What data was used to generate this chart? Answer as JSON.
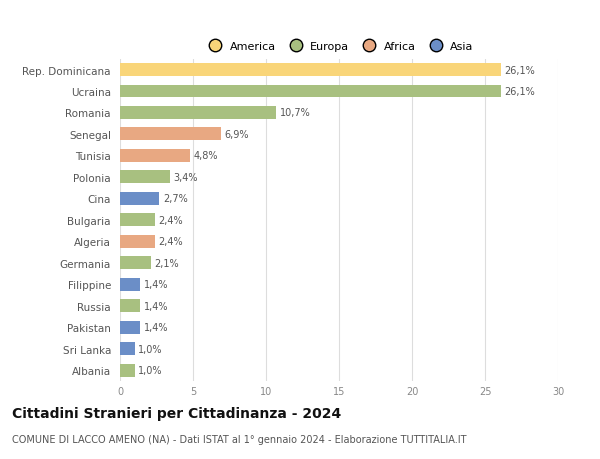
{
  "categories": [
    "Rep. Dominicana",
    "Ucraina",
    "Romania",
    "Senegal",
    "Tunisia",
    "Polonia",
    "Cina",
    "Bulgaria",
    "Algeria",
    "Germania",
    "Filippine",
    "Russia",
    "Pakistan",
    "Sri Lanka",
    "Albania"
  ],
  "values": [
    26.1,
    26.1,
    10.7,
    6.9,
    4.8,
    3.4,
    2.7,
    2.4,
    2.4,
    2.1,
    1.4,
    1.4,
    1.4,
    1.0,
    1.0
  ],
  "labels": [
    "26,1%",
    "26,1%",
    "10,7%",
    "6,9%",
    "4,8%",
    "3,4%",
    "2,7%",
    "2,4%",
    "2,4%",
    "2,1%",
    "1,4%",
    "1,4%",
    "1,4%",
    "1,0%",
    "1,0%"
  ],
  "colors": [
    "#f9d579",
    "#a8c080",
    "#a8c080",
    "#e8a882",
    "#e8a882",
    "#a8c080",
    "#6b8ec7",
    "#a8c080",
    "#e8a882",
    "#a8c080",
    "#6b8ec7",
    "#a8c080",
    "#6b8ec7",
    "#6b8ec7",
    "#a8c080"
  ],
  "legend_labels": [
    "America",
    "Europa",
    "Africa",
    "Asia"
  ],
  "legend_colors": [
    "#f9d579",
    "#a8c080",
    "#e8a882",
    "#6b8ec7"
  ],
  "title": "Cittadini Stranieri per Cittadinanza - 2024",
  "subtitle": "COMUNE DI LACCO AMENO (NA) - Dati ISTAT al 1° gennaio 2024 - Elaborazione TUTTITALIA.IT",
  "xlim": [
    0,
    30
  ],
  "xticks": [
    0,
    5,
    10,
    15,
    20,
    25,
    30
  ],
  "background_color": "#ffffff",
  "grid_color": "#dddddd",
  "bar_height": 0.6,
  "label_fontsize": 7,
  "ytick_fontsize": 7.5,
  "xtick_fontsize": 7,
  "legend_fontsize": 8,
  "title_fontsize": 10,
  "subtitle_fontsize": 7
}
